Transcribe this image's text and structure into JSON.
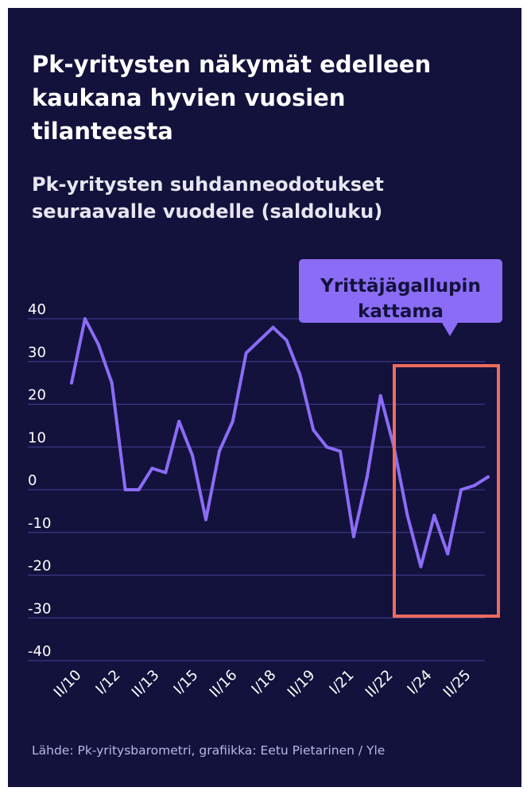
{
  "title": "Pk-yritysten näkymät edelleen\nkaukana hyvien vuosien\ntilanteesta",
  "subtitle": "Pk-yritysten suhdanneodotukset\nseuraavalle vuodelle (saldoluku)",
  "source": "Lähde: Pk-yritysbarometri, grafiikka: Eetu Pietarinen / Yle",
  "callout": {
    "label": "Yrittäjägallupin kattama",
    "line1": "Yrittäjägallupin",
    "line2": "kattama"
  },
  "colors": {
    "background": "#13123c",
    "line": "#8b6cf6",
    "grid": "#3b3785",
    "highlight_box": "#ec6b5e",
    "callout_bg": "#8b6cf6"
  },
  "chart_data": {
    "type": "line",
    "title": "Pk-yritysten näkymät edelleen kaukana hyvien vuosien tilanteesta",
    "subtitle": "Pk-yritysten suhdanneodotukset seuraavalle vuodelle (saldoluku)",
    "ylim": [
      -40,
      40
    ],
    "yticks": [
      40,
      30,
      20,
      10,
      0,
      -10,
      -20,
      -30,
      -40
    ],
    "ytick_labels": [
      "40",
      "30",
      "20",
      "10",
      "0",
      "-10",
      "-20",
      "-30",
      "-40"
    ],
    "xtick_labels": [
      "II/10",
      "I/12",
      "II/13",
      "I/15",
      "II/16",
      "I/18",
      "II/19",
      "I/21",
      "II/22",
      "I/24",
      "II/25"
    ],
    "grid": true,
    "highlight_region_from": 24,
    "series": [
      {
        "values": [
          25,
          40,
          34,
          25,
          0,
          0,
          5,
          4,
          16,
          8,
          -7,
          9,
          16,
          32,
          35,
          38,
          35,
          27,
          14,
          10,
          9,
          -11,
          3,
          22,
          10,
          -6,
          -18,
          -6,
          -15,
          0,
          1,
          3
        ]
      }
    ]
  }
}
